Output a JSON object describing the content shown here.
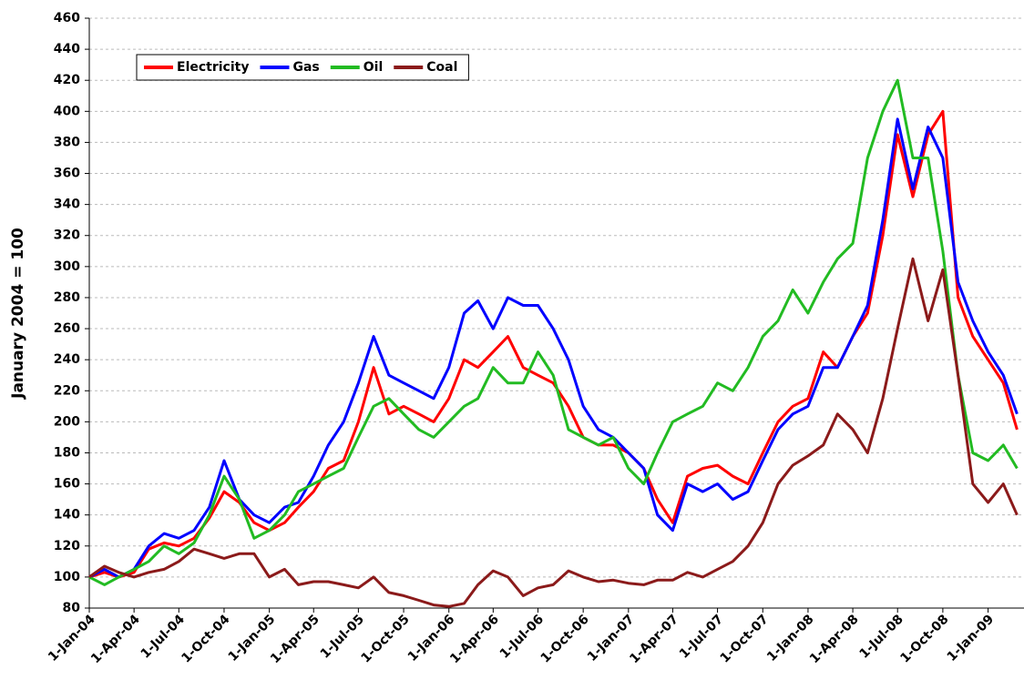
{
  "chart_data": {
    "type": "line",
    "ylabel": "January 2004 = 100",
    "x": [
      "2004-01-01",
      "2004-02-01",
      "2004-03-01",
      "2004-04-01",
      "2004-05-01",
      "2004-06-01",
      "2004-07-01",
      "2004-08-01",
      "2004-09-01",
      "2004-10-01",
      "2004-11-01",
      "2004-12-01",
      "2005-01-01",
      "2005-02-01",
      "2005-03-01",
      "2005-04-01",
      "2005-05-01",
      "2005-06-01",
      "2005-07-01",
      "2005-08-01",
      "2005-09-01",
      "2005-10-01",
      "2005-11-01",
      "2005-12-01",
      "2006-01-01",
      "2006-02-01",
      "2006-03-01",
      "2006-04-01",
      "2006-05-01",
      "2006-06-01",
      "2006-07-01",
      "2006-08-01",
      "2006-09-01",
      "2006-10-01",
      "2006-11-01",
      "2006-12-01",
      "2007-01-01",
      "2007-02-01",
      "2007-03-01",
      "2007-04-01",
      "2007-05-01",
      "2007-06-01",
      "2007-07-01",
      "2007-08-01",
      "2007-09-01",
      "2007-10-01",
      "2007-11-01",
      "2007-12-01",
      "2008-01-01",
      "2008-02-01",
      "2008-03-01",
      "2008-04-01",
      "2008-05-01",
      "2008-06-01",
      "2008-07-01",
      "2008-08-01",
      "2008-09-01",
      "2008-10-01",
      "2008-11-01",
      "2008-12-01",
      "2009-01-01",
      "2009-02-01",
      "2009-03-01"
    ],
    "series": [
      {
        "name": "Electricity",
        "color": "#ff0000",
        "values": [
          100,
          103,
          100,
          103,
          118,
          122,
          120,
          125,
          138,
          155,
          148,
          135,
          130,
          135,
          145,
          155,
          170,
          175,
          200,
          235,
          205,
          210,
          205,
          200,
          215,
          240,
          235,
          245,
          255,
          235,
          230,
          225,
          210,
          190,
          185,
          185,
          180,
          170,
          150,
          135,
          165,
          170,
          172,
          165,
          160,
          180,
          200,
          210,
          215,
          245,
          235,
          255,
          270,
          320,
          385,
          345,
          385,
          400,
          280,
          255,
          240,
          225,
          195
        ]
      },
      {
        "name": "Gas",
        "color": "#0000ff",
        "values": [
          100,
          105,
          100,
          105,
          120,
          128,
          125,
          130,
          145,
          175,
          150,
          140,
          135,
          145,
          148,
          165,
          185,
          200,
          225,
          255,
          230,
          225,
          220,
          215,
          235,
          270,
          278,
          260,
          280,
          275,
          275,
          260,
          240,
          210,
          195,
          190,
          180,
          170,
          140,
          130,
          160,
          155,
          160,
          150,
          155,
          175,
          195,
          205,
          210,
          235,
          235,
          255,
          275,
          330,
          395,
          350,
          390,
          370,
          290,
          265,
          245,
          230,
          205
        ]
      },
      {
        "name": "Oil",
        "color": "#22bb22",
        "values": [
          100,
          95,
          100,
          105,
          110,
          120,
          115,
          122,
          140,
          165,
          150,
          125,
          130,
          140,
          155,
          160,
          165,
          170,
          190,
          210,
          215,
          205,
          195,
          190,
          200,
          210,
          215,
          235,
          225,
          225,
          245,
          230,
          195,
          190,
          185,
          190,
          170,
          160,
          180,
          200,
          205,
          210,
          225,
          220,
          235,
          255,
          265,
          285,
          270,
          290,
          305,
          315,
          370,
          400,
          420,
          370,
          370,
          310,
          230,
          180,
          175,
          185,
          170
        ]
      },
      {
        "name": "Coal",
        "color": "#8b1a1a",
        "values": [
          100,
          107,
          103,
          100,
          103,
          105,
          110,
          118,
          115,
          112,
          115,
          115,
          100,
          105,
          95,
          97,
          97,
          95,
          93,
          100,
          90,
          88,
          85,
          82,
          81,
          83,
          95,
          104,
          100,
          88,
          93,
          95,
          104,
          100,
          97,
          98,
          96,
          95,
          98,
          98,
          103,
          100,
          105,
          110,
          120,
          135,
          160,
          172,
          178,
          185,
          205,
          195,
          180,
          215,
          260,
          305,
          265,
          298,
          230,
          160,
          148,
          160,
          140
        ]
      }
    ],
    "xlim": [
      "2004-01-01",
      "2009-03-15"
    ],
    "xticks": [
      {
        "value": "2004-01-01",
        "label": "1-Jan-04"
      },
      {
        "value": "2004-04-01",
        "label": "1-Apr-04"
      },
      {
        "value": "2004-07-01",
        "label": "1-Jul-04"
      },
      {
        "value": "2004-10-01",
        "label": "1-Oct-04"
      },
      {
        "value": "2005-01-01",
        "label": "1-Jan-05"
      },
      {
        "value": "2005-04-01",
        "label": "1-Apr-05"
      },
      {
        "value": "2005-07-01",
        "label": "1-Jul-05"
      },
      {
        "value": "2005-10-01",
        "label": "1-Oct-05"
      },
      {
        "value": "2006-01-01",
        "label": "1-Jan-06"
      },
      {
        "value": "2006-04-01",
        "label": "1-Apr-06"
      },
      {
        "value": "2006-07-01",
        "label": "1-Jul-06"
      },
      {
        "value": "2006-10-01",
        "label": "1-Oct-06"
      },
      {
        "value": "2007-01-01",
        "label": "1-Jan-07"
      },
      {
        "value": "2007-04-01",
        "label": "1-Apr-07"
      },
      {
        "value": "2007-07-01",
        "label": "1-Jul-07"
      },
      {
        "value": "2007-10-01",
        "label": "1-Oct-07"
      },
      {
        "value": "2008-01-01",
        "label": "1-Jan-08"
      },
      {
        "value": "2008-04-01",
        "label": "1-Apr-08"
      },
      {
        "value": "2008-07-01",
        "label": "1-Jul-08"
      },
      {
        "value": "2008-10-01",
        "label": "1-Oct-08"
      },
      {
        "value": "2009-01-01",
        "label": "1-Jan-09"
      }
    ],
    "ylim": [
      80,
      460
    ],
    "yticks": [
      80,
      100,
      120,
      140,
      160,
      180,
      200,
      220,
      240,
      260,
      280,
      300,
      320,
      340,
      360,
      380,
      400,
      420,
      440,
      460
    ],
    "grid": true,
    "legend": "top-left"
  }
}
